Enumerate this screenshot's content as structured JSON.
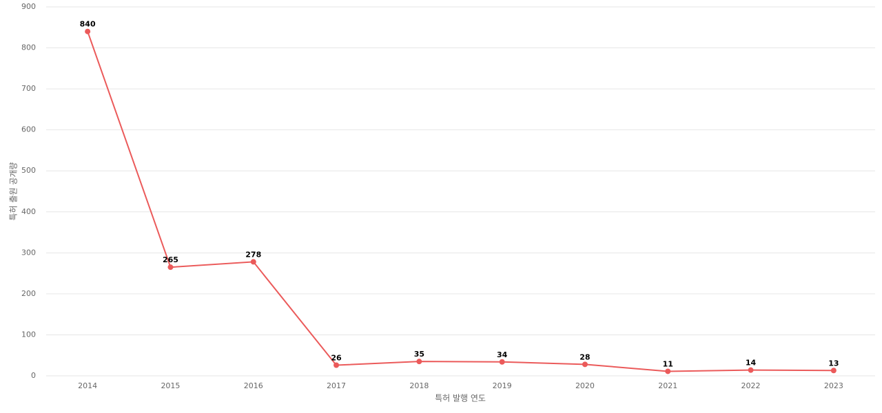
{
  "chart_data": {
    "type": "line",
    "categories": [
      "2014",
      "2015",
      "2016",
      "2017",
      "2018",
      "2019",
      "2020",
      "2021",
      "2022",
      "2023"
    ],
    "series": [
      {
        "name": "특허 출원 공개량",
        "color": "#eb5a5a",
        "values": [
          840,
          265,
          278,
          26,
          35,
          34,
          28,
          11,
          14,
          13
        ]
      }
    ],
    "x_label": "특허 발행 연도",
    "y_label": "특허 출원 공개량",
    "ylim": [
      0,
      900
    ],
    "yticks": [
      0,
      100,
      200,
      300,
      400,
      500,
      600,
      700,
      800,
      900
    ],
    "grid": true
  }
}
